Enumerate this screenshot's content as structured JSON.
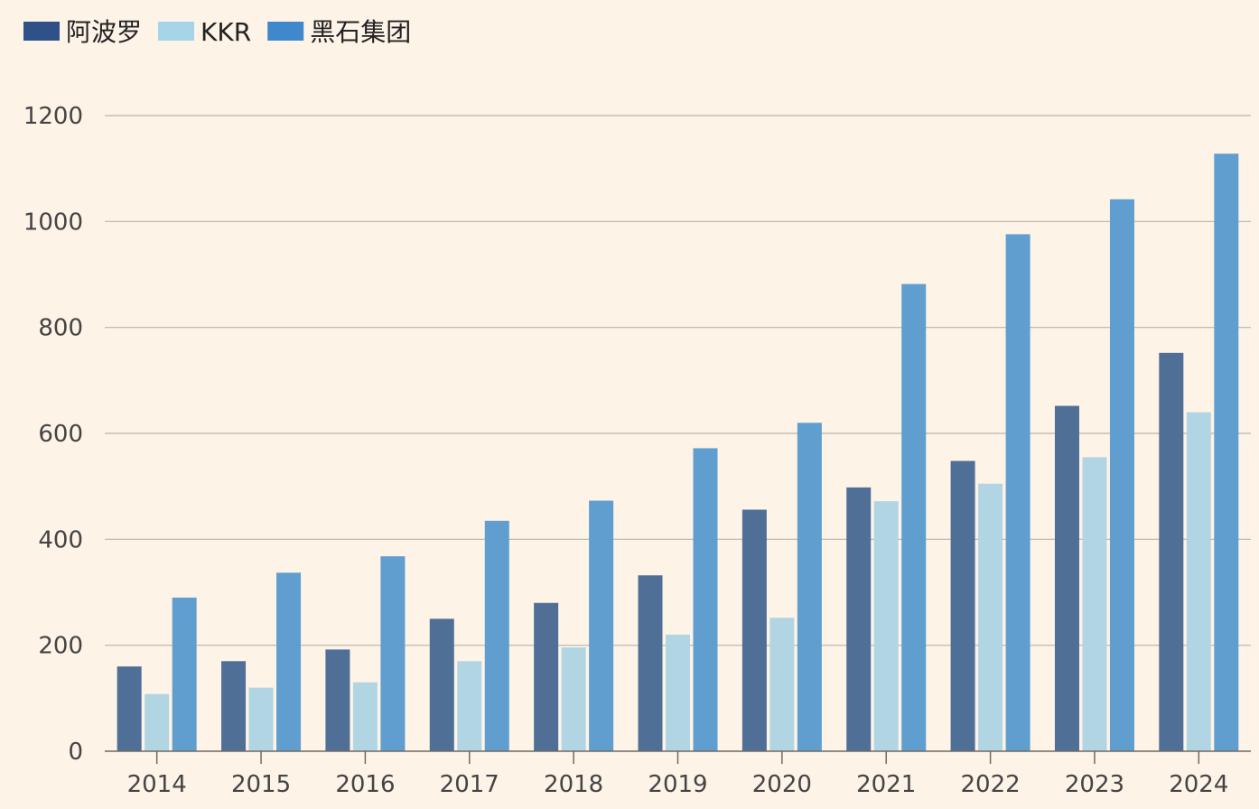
{
  "chart_data": {
    "type": "bar",
    "categories": [
      "2014",
      "2015",
      "2016",
      "2017",
      "2018",
      "2019",
      "2020",
      "2021",
      "2022",
      "2023",
      "2024"
    ],
    "series": [
      {
        "name": "阿波罗",
        "color": "#4f6f97",
        "legend_color": "#2f5187",
        "values": [
          160,
          170,
          192,
          250,
          280,
          332,
          456,
          498,
          548,
          652,
          752
        ]
      },
      {
        "name": "KKR",
        "color": "#b2d5e4",
        "legend_color": "#a6d4e8",
        "values": [
          108,
          120,
          130,
          170,
          196,
          220,
          252,
          472,
          505,
          555,
          640
        ]
      },
      {
        "name": "黑石集团",
        "color": "#609ecf",
        "legend_color": "#3f88cc",
        "values": [
          290,
          337,
          368,
          435,
          473,
          572,
          620,
          882,
          976,
          1042,
          1128
        ]
      }
    ],
    "y_ticks": [
      "0",
      "200",
      "400",
      "600",
      "800",
      "1000",
      "1200"
    ],
    "ylim": [
      0,
      1200
    ],
    "grid": true,
    "legend_position": "top-left",
    "title": "",
    "xlabel": "",
    "ylabel": ""
  }
}
